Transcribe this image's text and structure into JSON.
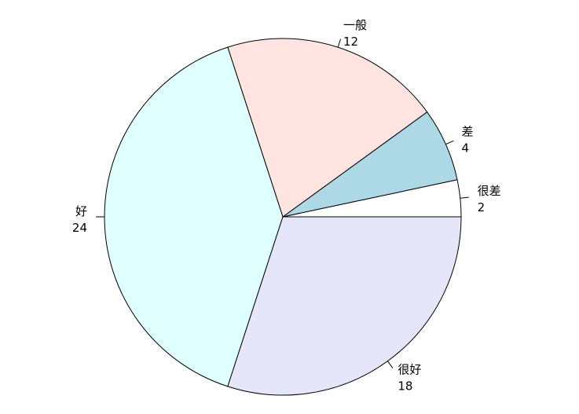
{
  "chart_data": {
    "type": "pie",
    "start_angle_degrees": 0,
    "direction": "counterclockwise",
    "slices": [
      {
        "label": "很差",
        "value": 2,
        "color": "#ffffff"
      },
      {
        "label": "差",
        "value": 4,
        "color": "#add8e6"
      },
      {
        "label": "一般",
        "value": 12,
        "color": "#ffe4e1"
      },
      {
        "label": "好",
        "value": 24,
        "color": "#e0ffff"
      },
      {
        "label": "很好",
        "value": 18,
        "color": "#e6e6fa"
      }
    ]
  }
}
